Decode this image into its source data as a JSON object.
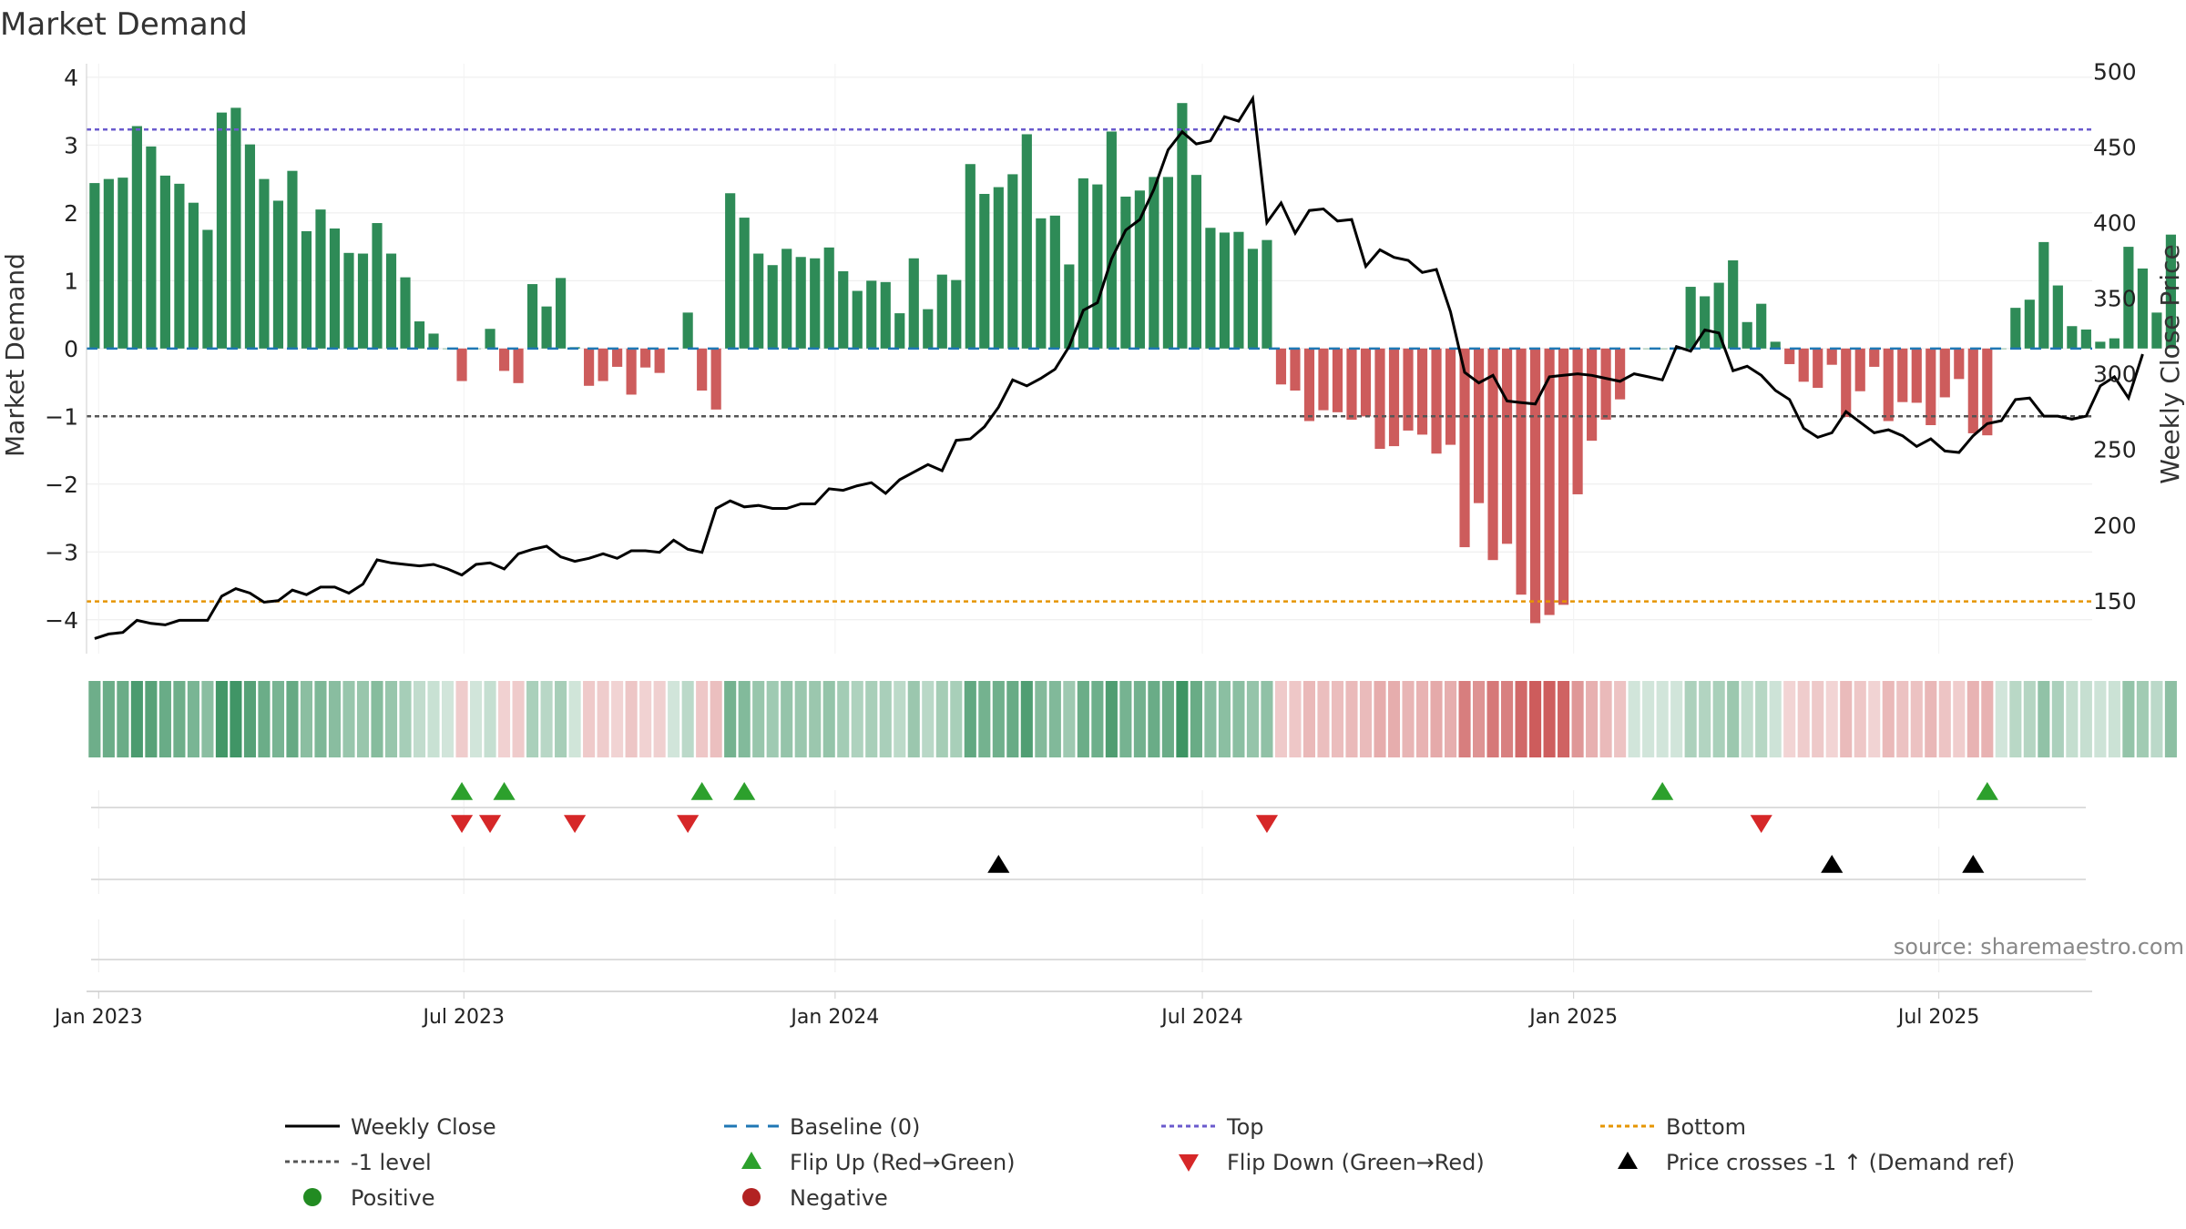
{
  "chart_data": {
    "type": "bar",
    "title": "Market Demand",
    "ylabel": "Market Demand",
    "y2label": "Weekly Close Price",
    "ylim": [
      -4.5,
      4.2
    ],
    "y2lim": [
      115,
      505
    ],
    "yticks": [
      4,
      3,
      2,
      1,
      0,
      -1,
      -2,
      -3,
      -4
    ],
    "ytick_labels": [
      "4",
      "3",
      "2",
      "1",
      "0",
      "−1",
      "−2",
      "−3",
      "−4"
    ],
    "y2ticks": [
      500,
      450,
      400,
      350,
      300,
      250,
      200,
      150
    ],
    "x_start": "2022-12-26",
    "x_end": "2025-09-15",
    "week_start": "2022-12-30",
    "xticks": [
      {
        "label": "Jan 2023",
        "date": "2023-01-01"
      },
      {
        "label": "Jul 2023",
        "date": "2023-07-01"
      },
      {
        "label": "Jan 2024",
        "date": "2024-01-01"
      },
      {
        "label": "Jul 2024",
        "date": "2024-07-01"
      },
      {
        "label": "Jan 2025",
        "date": "2025-01-01"
      },
      {
        "label": "Jul 2025",
        "date": "2025-07-01"
      }
    ],
    "grid": true,
    "series": [
      {
        "name": "Market Demand",
        "type": "bar",
        "positive_color": "#2e8b57",
        "negative_color": "#cd5c5c",
        "values": [
          2.44,
          2.5,
          2.52,
          3.28,
          2.98,
          2.55,
          2.43,
          2.15,
          1.75,
          3.48,
          3.55,
          3.01,
          2.5,
          2.18,
          2.62,
          1.73,
          2.05,
          1.77,
          1.41,
          1.4,
          1.85,
          1.4,
          1.05,
          0.4,
          0.22,
          0.0,
          -0.48,
          0.0,
          0.29,
          -0.33,
          -0.51,
          0.95,
          0.62,
          1.04,
          0.02,
          -0.55,
          -0.48,
          -0.27,
          -0.68,
          -0.28,
          -0.36,
          0.0,
          0.53,
          -0.62,
          -0.9,
          2.29,
          1.93,
          1.4,
          1.23,
          1.47,
          1.35,
          1.33,
          1.49,
          1.14,
          0.85,
          1.0,
          0.98,
          0.52,
          1.33,
          0.58,
          1.09,
          1.01,
          2.72,
          2.28,
          2.38,
          2.57,
          3.16,
          1.92,
          1.96,
          1.24,
          2.51,
          2.42,
          3.2,
          2.24,
          2.33,
          2.53,
          2.53,
          3.62,
          2.56,
          1.78,
          1.71,
          1.72,
          1.47,
          1.6,
          -0.53,
          -0.62,
          -1.07,
          -0.91,
          -0.94,
          -1.05,
          -1.0,
          -1.48,
          -1.44,
          -1.21,
          -1.27,
          -1.55,
          -1.42,
          -2.93,
          -2.28,
          -3.12,
          -2.88,
          -3.63,
          -4.05,
          -3.93,
          -3.78,
          -2.15,
          -1.36,
          -1.05,
          -0.75,
          -0.0,
          0.0,
          0.0,
          0.0,
          0.91,
          0.77,
          0.97,
          1.3,
          0.39,
          0.66,
          0.1,
          -0.23,
          -0.49,
          -0.58,
          -0.24,
          -1.01,
          -0.63,
          -0.27,
          -1.07,
          -0.79,
          -0.8,
          -1.13,
          -0.72,
          -0.45,
          -1.25,
          -1.28,
          0.0,
          0.6,
          0.72,
          1.57,
          0.93,
          0.33,
          0.28,
          0.1,
          0.15,
          1.5,
          1.18,
          0.53,
          1.68
        ]
      },
      {
        "name": "Weekly Close",
        "type": "line",
        "axis": "right",
        "color": "#000000",
        "values": [
          125,
          128,
          129,
          137,
          135,
          134,
          137,
          137,
          137,
          153,
          158,
          155,
          149,
          150,
          157,
          154,
          159,
          159,
          155,
          161,
          177,
          175,
          174,
          173,
          174,
          171,
          167,
          174,
          175,
          171,
          181,
          184,
          186,
          179,
          176,
          178,
          181,
          178,
          183,
          183,
          182,
          190,
          184,
          182,
          211,
          216,
          212,
          213,
          211,
          211,
          214,
          214,
          224,
          223,
          226,
          228,
          221,
          230,
          235,
          240,
          236,
          256,
          257,
          265,
          278,
          296,
          292,
          297,
          303,
          318,
          342,
          347,
          376,
          395,
          402,
          422,
          448,
          460,
          452,
          454,
          470,
          467,
          482,
          400,
          413,
          393,
          408,
          409,
          401,
          402,
          371,
          382,
          377,
          375,
          367,
          369,
          341,
          301,
          294,
          299,
          282,
          281,
          280,
          298,
          299,
          300,
          299,
          297,
          295,
          300,
          298,
          296,
          318,
          315,
          329,
          327,
          302,
          305,
          299,
          289,
          283,
          264,
          258,
          261,
          275,
          268,
          261,
          263,
          259,
          252,
          257,
          249,
          248,
          259,
          267,
          269,
          283,
          284,
          272,
          272,
          270,
          272,
          292,
          298,
          284,
          313
        ]
      }
    ],
    "reference_lines": [
      {
        "name": "Baseline (0)",
        "value": 0,
        "color": "#1f77b4",
        "style": "dashed"
      },
      {
        "name": "Top",
        "value": 3.23,
        "color": "#6a5acd",
        "style": "dotted"
      },
      {
        "name": "-1 level",
        "value": -1,
        "color": "#555555",
        "style": "dotted"
      },
      {
        "name": "Bottom",
        "value": -3.73,
        "color": "#e69500",
        "style": "dotted"
      }
    ],
    "flip_up_weeks": [
      26,
      29,
      43,
      46,
      111,
      134
    ],
    "flip_down_weeks": [
      26,
      28,
      34,
      42,
      83,
      118
    ],
    "price_cross_weeks": [
      64,
      123,
      133
    ],
    "flip_up_color": "#2ca02c",
    "flip_down_color": "#d62728",
    "cross_color": "#000000",
    "positive_color": "#2e8b57",
    "negative_color": "#cd5c5c",
    "legend_placement": "bottom",
    "legend": [
      {
        "label": "Weekly Close",
        "marker": "line"
      },
      {
        "label": "Baseline (0)",
        "marker": "dashed"
      },
      {
        "label": "Top",
        "marker": "dotted-top"
      },
      {
        "label": "Bottom",
        "marker": "dotted-bottom"
      },
      {
        "label": "-1 level",
        "marker": "dotted-level"
      },
      {
        "label": "Flip Up (Red→Green)",
        "marker": "triangle-up-green"
      },
      {
        "label": "Flip Down (Green→Red)",
        "marker": "triangle-down-red"
      },
      {
        "label": "Price crosses -1 ↑ (Demand ref)",
        "marker": "triangle-up-black"
      },
      {
        "label": "Positive",
        "marker": "circle-green"
      },
      {
        "label": "Negative",
        "marker": "circle-red"
      }
    ],
    "source": "source: sharemaestro.com"
  }
}
